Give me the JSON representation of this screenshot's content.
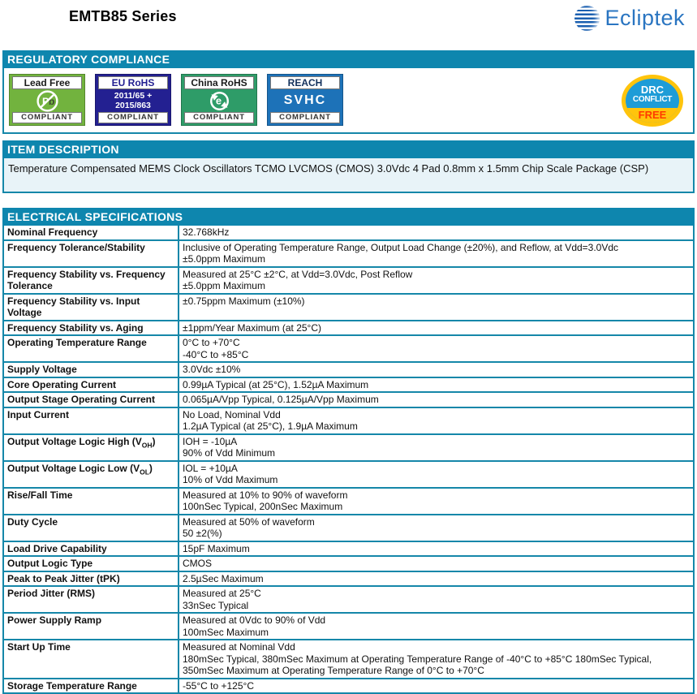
{
  "header": {
    "title": "EMTB85 Series",
    "logo_text": "Ecliptek"
  },
  "colors": {
    "section_bar_teal": "#0e86ae",
    "table_border_teal": "#1587a9",
    "description_bg": "#e8f3f8",
    "lead_free_green": "#72b33e",
    "eu_rohs_navy": "#232091",
    "china_rohs_green": "#2e9c68",
    "reach_blue": "#1d72b8",
    "drc_yellow": "#ffc40c",
    "drc_blue": "#1e9cd7",
    "drc_free_red": "#ff3a00",
    "logo_blue": "#2a75c1"
  },
  "regulatory": {
    "title": "REGULATORY COMPLIANCE",
    "badges": {
      "lead_free": {
        "title": "Lead Free",
        "symbol": "Pb",
        "compliant": "COMPLIANT"
      },
      "eu_rohs": {
        "title": "EU RoHS",
        "line1": "2011/65 +",
        "line2": "2015/863",
        "compliant": "COMPLIANT"
      },
      "china_rohs": {
        "title": "China RoHS",
        "symbol": "e",
        "compliant": "COMPLIANT"
      },
      "reach": {
        "title": "REACH",
        "subtitle": "SVHC",
        "compliant": "COMPLIANT"
      }
    },
    "drc_badge": {
      "line1": "DRC",
      "line2": "CONFLICT",
      "line3": "FREE"
    }
  },
  "item_description": {
    "title": "ITEM DESCRIPTION",
    "text": "Temperature Compensated MEMS Clock Oscillators TCMO LVCMOS (CMOS) 3.0Vdc 4 Pad 0.8mm x 1.5mm Chip Scale Package (CSP)"
  },
  "electrical": {
    "title": "ELECTRICAL SPECIFICATIONS",
    "rows": [
      {
        "label": "Nominal Frequency",
        "values": [
          "32.768kHz"
        ]
      },
      {
        "label": "Frequency Tolerance/Stability",
        "values": [
          "Inclusive of Operating Temperature Range, Output Load Change (±20%), and Reflow, at Vdd=3.0Vdc",
          "±5.0ppm Maximum"
        ]
      },
      {
        "label": "Frequency Stability vs. Frequency Tolerance",
        "values": [
          "Measured at 25°C ±2°C, at Vdd=3.0Vdc, Post Reflow",
          "±5.0ppm Maximum"
        ]
      },
      {
        "label": "Frequency Stability vs. Input Voltage",
        "values": [
          "±0.75ppm Maximum (±10%)"
        ]
      },
      {
        "label": "Frequency Stability vs. Aging",
        "values": [
          "±1ppm/Year Maximum (at 25°C)"
        ]
      },
      {
        "label": "Operating Temperature Range",
        "values": [
          "0°C to +70°C",
          "-40°C to +85°C"
        ]
      },
      {
        "label": "Supply Voltage",
        "values": [
          "3.0Vdc ±10%"
        ]
      },
      {
        "label": "Core Operating Current",
        "values": [
          "0.99µA Typical (at 25°C), 1.52µA Maximum"
        ]
      },
      {
        "label": "Output Stage Operating Current",
        "values": [
          "0.065µA/Vpp Typical, 0.125µA/Vpp Maximum"
        ]
      },
      {
        "label": "Input Current",
        "values": [
          "No Load, Nominal Vdd",
          "1.2µA Typical (at 25°C), 1.9µA Maximum"
        ]
      },
      {
        "label_parts": [
          {
            "t": "Output Voltage Logic High (V"
          },
          {
            "t": "OH",
            "sub": true
          },
          {
            "t": ")"
          }
        ],
        "values": [
          "IOH = -10µA",
          "90% of Vdd Minimum"
        ]
      },
      {
        "label_parts": [
          {
            "t": "Output Voltage Logic Low (V"
          },
          {
            "t": "OL",
            "sub": true
          },
          {
            "t": ")"
          }
        ],
        "values": [
          "IOL = +10µA",
          "10% of Vdd Maximum"
        ]
      },
      {
        "label": "Rise/Fall Time",
        "values": [
          "Measured at 10% to 90% of waveform",
          "100nSec Typical, 200nSec Maximum"
        ]
      },
      {
        "label": "Duty Cycle",
        "values": [
          "Measured at 50% of waveform",
          "50 ±2(%)"
        ]
      },
      {
        "label": "Load Drive Capability",
        "values": [
          "15pF Maximum"
        ]
      },
      {
        "label": "Output Logic Type",
        "values": [
          "CMOS"
        ]
      },
      {
        "label": "Peak to Peak Jitter (tPK)",
        "values": [
          "2.5µSec Maximum"
        ]
      },
      {
        "label": "Period Jitter (RMS)",
        "values": [
          "Measured at 25°C",
          "33nSec Typical"
        ]
      },
      {
        "label": "Power Supply Ramp",
        "values": [
          "Measured at 0Vdc to 90% of Vdd",
          "100mSec Maximum"
        ]
      },
      {
        "label": "Start Up Time",
        "values": [
          "Measured at Nominal Vdd",
          "180mSec Typical, 380mSec Maximum at Operating Temperature Range of -40°C to +85°C 180mSec Typical, 350mSec Maximum at Operating Temperature Range of 0°C to +70°C"
        ]
      },
      {
        "label": "Storage Temperature Range",
        "values": [
          "-55°C to +125°C"
        ]
      }
    ]
  }
}
